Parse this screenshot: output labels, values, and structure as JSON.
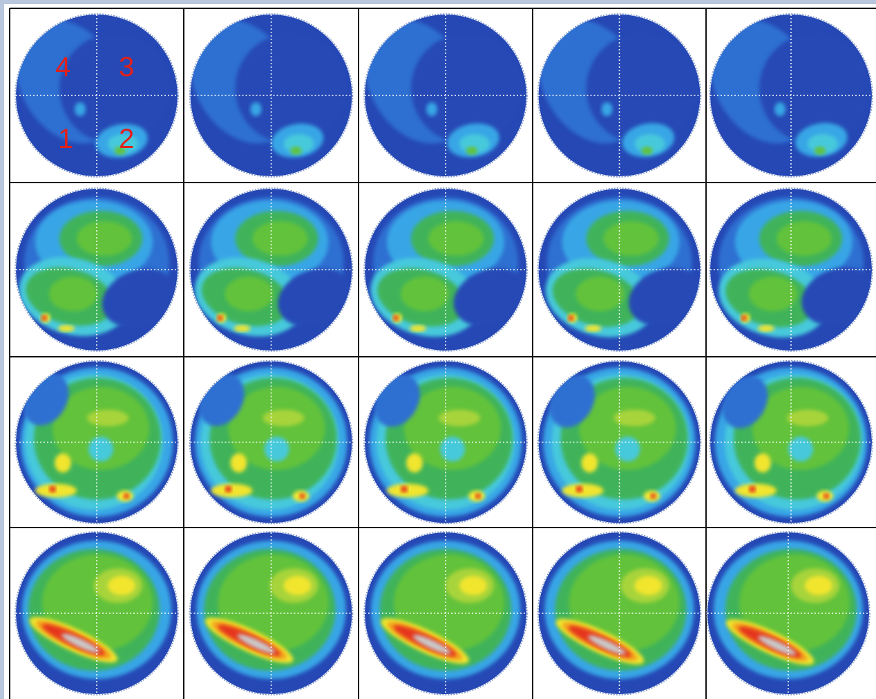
{
  "quadrant_labels": [
    "4",
    "3",
    "1",
    "2"
  ],
  "colors": {
    "frame": "#b8c6de",
    "grid_lines": "#111111",
    "guide_lines": "#ffffff",
    "label_red": "#e0211a",
    "scale": [
      "#1d2f8f",
      "#2548b5",
      "#2f6fd1",
      "#38a6e6",
      "#47c9dc",
      "#3fb35a",
      "#62c23a",
      "#a8d43a",
      "#f1e52e",
      "#f3a21f",
      "#e5341a",
      "#c9c9c9"
    ]
  },
  "grid": {
    "rows": 4,
    "columns": 5,
    "row_intensity": [
      "low",
      "medium",
      "medium-high",
      "high"
    ]
  }
}
